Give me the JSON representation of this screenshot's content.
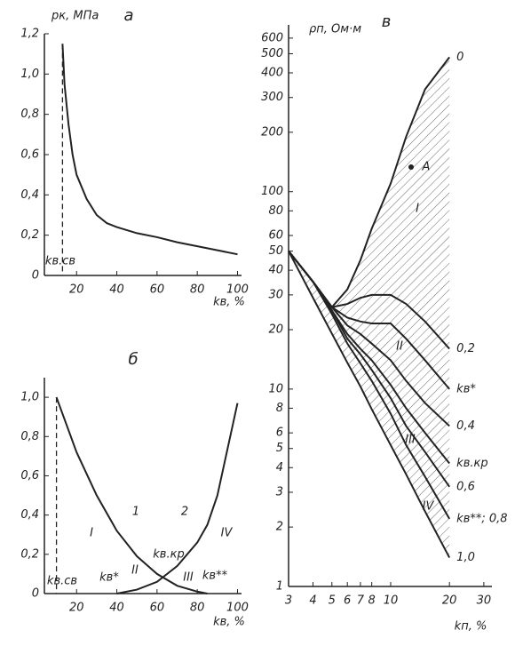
{
  "chart_data": [
    {
      "type": "line",
      "title": "а",
      "y_label": "pк, МПа",
      "x_label": "kв, %",
      "x": [
        13,
        14,
        16,
        18,
        20,
        25,
        30,
        35,
        40,
        50,
        60,
        70,
        80,
        90,
        100
      ],
      "series": [
        {
          "color": "#222",
          "values": [
            1.15,
            0.95,
            0.75,
            0.6,
            0.5,
            0.38,
            0.3,
            0.26,
            0.24,
            0.21,
            0.19,
            0.165,
            0.145,
            0.125,
            0.105
          ]
        }
      ],
      "xlim": [
        4,
        102
      ],
      "ylim": [
        0,
        1.2
      ],
      "xticks": [
        20,
        40,
        60,
        80,
        100
      ],
      "yticks": [
        0,
        {
          "value": 0.2,
          "label": "0,2"
        },
        {
          "value": 0.4,
          "label": "0,4"
        },
        {
          "value": 0.6,
          "label": "0,6"
        },
        {
          "value": 0.8,
          "label": "0,8"
        },
        {
          "value": 1.0,
          "label": "1,0"
        },
        {
          "value": 1.2,
          "label": "1,2"
        }
      ],
      "annotations": [
        "kв.св"
      ]
    },
    {
      "type": "line",
      "title": "б",
      "x_label": "kв, %",
      "x": [
        10,
        20,
        30,
        40,
        50,
        60,
        70,
        80,
        85,
        90,
        100
      ],
      "series": [
        {
          "color": "#222",
          "values": [
            1.0,
            0.72,
            0.5,
            0.32,
            0.19,
            0.1,
            0.04,
            0.01,
            0,
            null,
            null
          ]
        },
        {
          "color": "#222",
          "values": [
            null,
            null,
            null,
            0,
            0.02,
            0.06,
            0.14,
            0.26,
            0.35,
            0.5,
            0.97
          ]
        }
      ],
      "xlim": [
        4,
        102
      ],
      "ylim": [
        0,
        1.1
      ],
      "xticks": [
        20,
        40,
        60,
        80,
        100
      ],
      "yticks": [
        0,
        {
          "value": 0.2,
          "label": "0,2"
        },
        {
          "value": 0.4,
          "label": "0,4"
        },
        {
          "value": 0.6,
          "label": "0,6"
        },
        {
          "value": 0.8,
          "label": "0,8"
        },
        {
          "value": 1.0,
          "label": "1,0"
        }
      ],
      "annotations": [
        "I",
        "II",
        "III",
        "IV",
        "1",
        "2",
        "kв.св",
        "kв*",
        "kв.кр",
        "kв**"
      ]
    },
    {
      "type": "line",
      "title": "в",
      "y_label": "ρп, Ом·м",
      "x_label": "kп, %",
      "log_x": true,
      "log_y": true,
      "x": [
        3,
        4,
        5,
        6,
        7,
        8,
        10,
        12,
        15,
        20
      ],
      "series": [
        {
          "name": "0",
          "color": "#222",
          "values": [
            50,
            35,
            26,
            32,
            45,
            65,
            110,
            190,
            330,
            480
          ]
        },
        {
          "name": "0,2",
          "color": "#222",
          "values": [
            50,
            35,
            26,
            27,
            29,
            30,
            30,
            27,
            22,
            16
          ]
        },
        {
          "name": "kв*",
          "color": "#222",
          "values": [
            50,
            35,
            26,
            23,
            22,
            21.5,
            21.5,
            18,
            14,
            10
          ]
        },
        {
          "name": "0,4",
          "color": "#222",
          "values": [
            50,
            35,
            26,
            21,
            19,
            17,
            14,
            11,
            8.5,
            6.5
          ]
        },
        {
          "name": "kв.кр",
          "color": "#222",
          "values": [
            50,
            35,
            25,
            19,
            16,
            14,
            10.5,
            8,
            6,
            4.2
          ]
        },
        {
          "name": "0,6",
          "color": "#222",
          "values": [
            50,
            35,
            25,
            18,
            15,
            12.5,
            9,
            6.5,
            4.8,
            3.2
          ]
        },
        {
          "name": "kв**; 0,8",
          "color": "#222",
          "values": [
            50,
            35,
            24,
            17,
            13.5,
            11,
            7.5,
            5.2,
            3.6,
            2.2
          ]
        },
        {
          "name": "1,0",
          "color": "#222",
          "values": [
            50,
            29,
            19.1,
            13.6,
            10.3,
            7.9,
            5.2,
            3.7,
            2.4,
            1.4
          ]
        }
      ],
      "xlim": [
        3,
        33
      ],
      "ylim": [
        1,
        700
      ],
      "xticks": [
        3,
        4,
        5,
        6,
        7,
        8,
        10,
        20,
        30
      ],
      "yticks": [
        1,
        2,
        3,
        4,
        5,
        6,
        8,
        10,
        20,
        30,
        40,
        50,
        60,
        80,
        100,
        200,
        300,
        400,
        500,
        600
      ],
      "annotations": [
        "A",
        "I",
        "II",
        "III",
        "IV"
      ]
    }
  ]
}
